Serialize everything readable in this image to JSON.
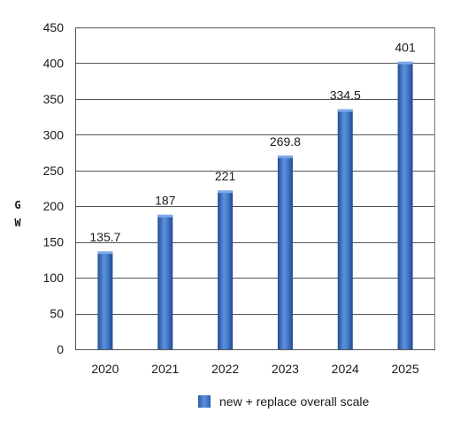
{
  "chart_data": {
    "type": "bar",
    "categories": [
      "2020",
      "2021",
      "2022",
      "2023",
      "2024",
      "2025"
    ],
    "series": [
      {
        "name": "new + replace overall scale",
        "values": [
          135.7,
          187,
          221,
          269.8,
          334.5,
          401
        ]
      }
    ],
    "data_labels": [
      "135.7",
      "187",
      "221",
      "269.8",
      "334.5",
      "401"
    ],
    "ylabel": "G W",
    "ylabel_chars": [
      "G",
      "W"
    ],
    "ylim": [
      0,
      450
    ],
    "yticks": [
      0,
      50,
      100,
      150,
      200,
      250,
      300,
      350,
      400,
      450
    ],
    "grid": true,
    "legend": "bottom",
    "bar_color": "#3a6fc4"
  }
}
